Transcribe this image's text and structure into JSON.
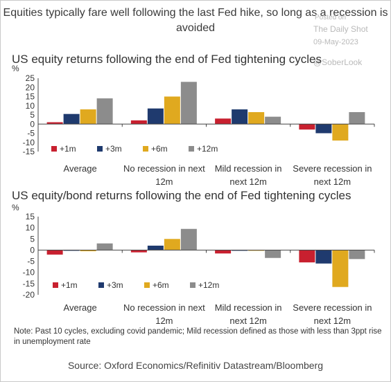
{
  "header": {
    "title": "Equities typically fare well following the last Fed hike, so long as a recession is avoided",
    "wm_line1": "Posted on",
    "wm_line2": "The Daily Shot",
    "wm_date": "09-May-2023",
    "wm_handle": "@SoberLook"
  },
  "note": "Note: Past 10 cycles, excluding covid pandemic; Mild recession defined as those with less than 3ppt rise in unemployment rate",
  "source": "Source: Oxford Economics/Refinitiv Datastream/Bloomberg",
  "colors": {
    "+1m": "#c8202f",
    "+3m": "#1f3a6e",
    "+6m": "#e0a91f",
    "+12m": "#8c8c8c"
  },
  "chart_data": [
    {
      "type": "bar",
      "title": "US equity returns following the end of Fed tightening cycles",
      "ylabel": "%",
      "ylim": [
        -15,
        25
      ],
      "yticks": [
        25,
        20,
        15,
        10,
        5,
        0,
        -5,
        -10,
        -15
      ],
      "categories": [
        "Average",
        "No recession in next 12m",
        "Mild recession in next 12m",
        "Severe recession in next 12m"
      ],
      "category_lines": [
        [
          "Average"
        ],
        [
          "No recession in next",
          "12m"
        ],
        [
          "Mild recession in",
          "next 12m"
        ],
        [
          "Severe recession in",
          "next 12m"
        ]
      ],
      "legend": [
        "+1m",
        "+3m",
        "+6m",
        "+12m"
      ],
      "series": [
        {
          "name": "+1m",
          "values": [
            1,
            2,
            3,
            -3
          ]
        },
        {
          "name": "+3m",
          "values": [
            5.5,
            8.5,
            8,
            -5
          ]
        },
        {
          "name": "+6m",
          "values": [
            8,
            15,
            6.5,
            -9
          ]
        },
        {
          "name": "+12m",
          "values": [
            14,
            23,
            4,
            6.5
          ]
        }
      ]
    },
    {
      "type": "bar",
      "title": "US equity/bond returns following the end of Fed tightening cycles",
      "ylabel": "%",
      "ylim": [
        -20,
        15
      ],
      "yticks": [
        15,
        10,
        5,
        0,
        -5,
        -10,
        -15,
        -20
      ],
      "categories": [
        "Average",
        "No recession in next 12m",
        "Mild recession in next 12m",
        "Severe recession in next 12m"
      ],
      "category_lines": [
        [
          "Average"
        ],
        [
          "No recession in next",
          "12m"
        ],
        [
          "Mild recession in",
          "next 12m"
        ],
        [
          "Severe recession in",
          "next 12m"
        ]
      ],
      "legend": [
        "+1m",
        "+3m",
        "+6m",
        "+12m"
      ],
      "series": [
        {
          "name": "+1m",
          "values": [
            -2,
            -1,
            -1.5,
            -5.5
          ]
        },
        {
          "name": "+3m",
          "values": [
            -0.3,
            2,
            -0.3,
            -6
          ]
        },
        {
          "name": "+6m",
          "values": [
            -0.5,
            5,
            -0.3,
            -16.5
          ]
        },
        {
          "name": "+12m",
          "values": [
            3,
            9.5,
            -3.5,
            -4
          ]
        }
      ]
    }
  ]
}
